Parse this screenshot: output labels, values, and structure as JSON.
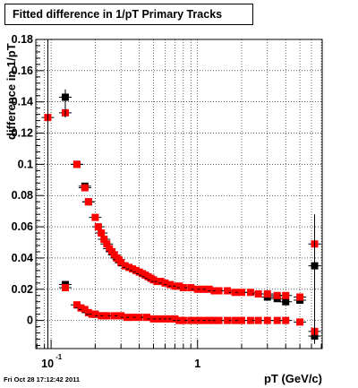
{
  "chart_data": {
    "type": "scatter",
    "title": "Fitted difference in 1/pT  Primary Tracks",
    "xlabel": "pT (GeV/c)",
    "ylabel": "difference in 1/pT",
    "x_scale": "log",
    "xlim": [
      0.0786,
      7.1
    ],
    "ylim": [
      -0.018,
      0.18
    ],
    "x_tick_labels": [
      {
        "value": 0.1,
        "label": "10",
        "exponent": "-1"
      },
      {
        "value": 1,
        "label": "1",
        "exponent": ""
      }
    ],
    "y_ticks": [
      0,
      0.02,
      0.04,
      0.06,
      0.08,
      0.1,
      0.12,
      0.14,
      0.16,
      0.18
    ],
    "y_tick_labels": [
      "0",
      "0.02",
      "0.04",
      "0.06",
      "0.08",
      "0.1",
      "0.12",
      "0.14",
      "0.16",
      "0.18"
    ],
    "grid": true,
    "timestamp": "Fri Oct 28 17:12:42 2011",
    "series": [
      {
        "color": "#000000",
        "points": [
          [
            0.125,
            0.143
          ],
          [
            0.125,
            0.023
          ],
          [
            0.15,
            0.1
          ],
          [
            0.17,
            0.086
          ],
          [
            0.18,
            0.076
          ],
          [
            0.2,
            0.004
          ],
          [
            0.23,
            0.003
          ],
          [
            3.0,
            0.015
          ],
          [
            3.5,
            0.014
          ],
          [
            4.0,
            0.012
          ],
          [
            5.0,
            0.013
          ],
          [
            6.3,
            0.035
          ],
          [
            6.3,
            -0.01
          ]
        ]
      },
      {
        "color": "#ff0000",
        "points": [
          [
            0.095,
            0.13
          ],
          [
            0.125,
            0.133
          ],
          [
            0.125,
            0.021
          ],
          [
            0.15,
            0.1
          ],
          [
            0.17,
            0.085
          ],
          [
            0.18,
            0.076
          ],
          [
            0.2,
            0.066
          ],
          [
            0.21,
            0.06
          ],
          [
            0.22,
            0.056
          ],
          [
            0.23,
            0.052
          ],
          [
            0.24,
            0.049
          ],
          [
            0.25,
            0.046
          ],
          [
            0.26,
            0.044
          ],
          [
            0.27,
            0.042
          ],
          [
            0.28,
            0.04
          ],
          [
            0.29,
            0.039
          ],
          [
            0.3,
            0.037
          ],
          [
            0.32,
            0.035
          ],
          [
            0.34,
            0.034
          ],
          [
            0.36,
            0.033
          ],
          [
            0.38,
            0.032
          ],
          [
            0.4,
            0.031
          ],
          [
            0.42,
            0.03
          ],
          [
            0.44,
            0.029
          ],
          [
            0.46,
            0.028
          ],
          [
            0.48,
            0.027
          ],
          [
            0.5,
            0.026
          ],
          [
            0.53,
            0.025
          ],
          [
            0.56,
            0.025
          ],
          [
            0.6,
            0.024
          ],
          [
            0.65,
            0.023
          ],
          [
            0.7,
            0.022
          ],
          [
            0.75,
            0.022
          ],
          [
            0.8,
            0.021
          ],
          [
            0.9,
            0.021
          ],
          [
            1.0,
            0.02
          ],
          [
            1.1,
            0.02
          ],
          [
            1.2,
            0.02
          ],
          [
            1.3,
            0.019
          ],
          [
            1.4,
            0.019
          ],
          [
            1.6,
            0.019
          ],
          [
            1.8,
            0.018
          ],
          [
            2.0,
            0.018
          ],
          [
            2.3,
            0.018
          ],
          [
            2.6,
            0.017
          ],
          [
            3.0,
            0.017
          ],
          [
            3.5,
            0.016
          ],
          [
            4.0,
            0.016
          ],
          [
            5.0,
            0.015
          ],
          [
            6.3,
            0.049
          ],
          [
            0.15,
            0.01
          ],
          [
            0.16,
            0.008
          ],
          [
            0.17,
            0.007
          ],
          [
            0.18,
            0.005
          ],
          [
            0.19,
            0.004
          ],
          [
            0.2,
            0.004
          ],
          [
            0.22,
            0.003
          ],
          [
            0.24,
            0.003
          ],
          [
            0.27,
            0.003
          ],
          [
            0.3,
            0.003
          ],
          [
            0.33,
            0.002
          ],
          [
            0.36,
            0.002
          ],
          [
            0.4,
            0.002
          ],
          [
            0.45,
            0.002
          ],
          [
            0.5,
            0.001
          ],
          [
            0.55,
            0.001
          ],
          [
            0.6,
            0.001
          ],
          [
            0.65,
            0.001
          ],
          [
            0.7,
            0.001
          ],
          [
            0.75,
            0.0
          ],
          [
            0.8,
            0.0
          ],
          [
            0.9,
            0.0
          ],
          [
            1.0,
            0.0
          ],
          [
            1.1,
            0.0
          ],
          [
            1.2,
            0.0
          ],
          [
            1.3,
            0.0
          ],
          [
            1.4,
            0.0
          ],
          [
            1.6,
            0.0
          ],
          [
            1.8,
            0.0
          ],
          [
            2.0,
            0.0
          ],
          [
            2.3,
            0.0
          ],
          [
            2.6,
            0.0
          ],
          [
            3.0,
            0.0
          ],
          [
            3.5,
            0.0
          ],
          [
            4.0,
            0.0
          ],
          [
            5.0,
            -0.001
          ],
          [
            6.3,
            -0.007
          ]
        ]
      }
    ]
  }
}
